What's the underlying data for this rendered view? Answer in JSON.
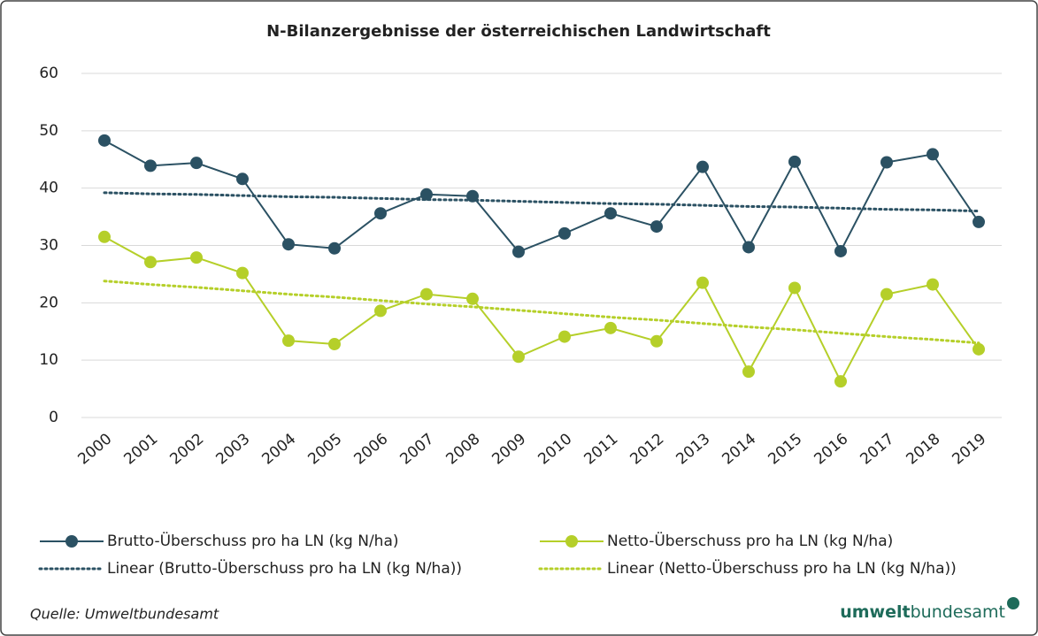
{
  "chart_data": {
    "type": "line",
    "title": "N-Bilanzergebnisse der österreichischen Landwirtschaft",
    "categories": [
      "2000",
      "2001",
      "2002",
      "2003",
      "2004",
      "2005",
      "2006",
      "2007",
      "2008",
      "2009",
      "2010",
      "2011",
      "2012",
      "2013",
      "2014",
      "2015",
      "2016",
      "2017",
      "2018",
      "2019"
    ],
    "series": [
      {
        "name": "Brutto-Überschuss pro ha LN (kg N/ha)",
        "color": "#2b5163",
        "style": "marker",
        "values": [
          48.3,
          43.9,
          44.4,
          41.6,
          30.2,
          29.5,
          35.6,
          38.9,
          38.6,
          28.9,
          32.1,
          35.6,
          33.3,
          43.7,
          29.7,
          44.6,
          29.0,
          44.5,
          45.9,
          34.1
        ]
      },
      {
        "name": "Netto-Überschuss pro ha LN (kg N/ha)",
        "color": "#b5cf29",
        "style": "marker",
        "values": [
          31.5,
          27.1,
          27.9,
          25.2,
          13.4,
          12.8,
          18.6,
          21.5,
          20.7,
          10.6,
          14.1,
          15.6,
          13.3,
          23.5,
          8.0,
          22.6,
          6.3,
          21.5,
          23.2,
          11.9
        ]
      },
      {
        "name": "Linear (Brutto-Überschuss pro ha LN (kg N/ha))",
        "color": "#2b5163",
        "style": "dotted",
        "values": [
          39.2,
          39.0,
          38.9,
          38.7,
          38.5,
          38.4,
          38.2,
          38.0,
          37.9,
          37.7,
          37.5,
          37.3,
          37.2,
          37.0,
          36.8,
          36.7,
          36.5,
          36.3,
          36.2,
          36.0
        ]
      },
      {
        "name": "Linear (Netto-Überschuss pro ha LN (kg N/ha))",
        "color": "#b5cf29",
        "style": "dotted",
        "values": [
          23.8,
          23.2,
          22.7,
          22.1,
          21.5,
          21.0,
          20.4,
          19.8,
          19.3,
          18.7,
          18.1,
          17.5,
          17.0,
          16.4,
          15.8,
          15.3,
          14.7,
          14.1,
          13.6,
          13.0
        ]
      }
    ],
    "ylim": [
      0,
      60
    ],
    "yticks": [
      0,
      10,
      20,
      30,
      40,
      50,
      60
    ],
    "grid": true
  },
  "source": "Quelle: Umweltbundesamt",
  "logo": {
    "bold": "umwelt",
    "regular": "bundesamt"
  }
}
